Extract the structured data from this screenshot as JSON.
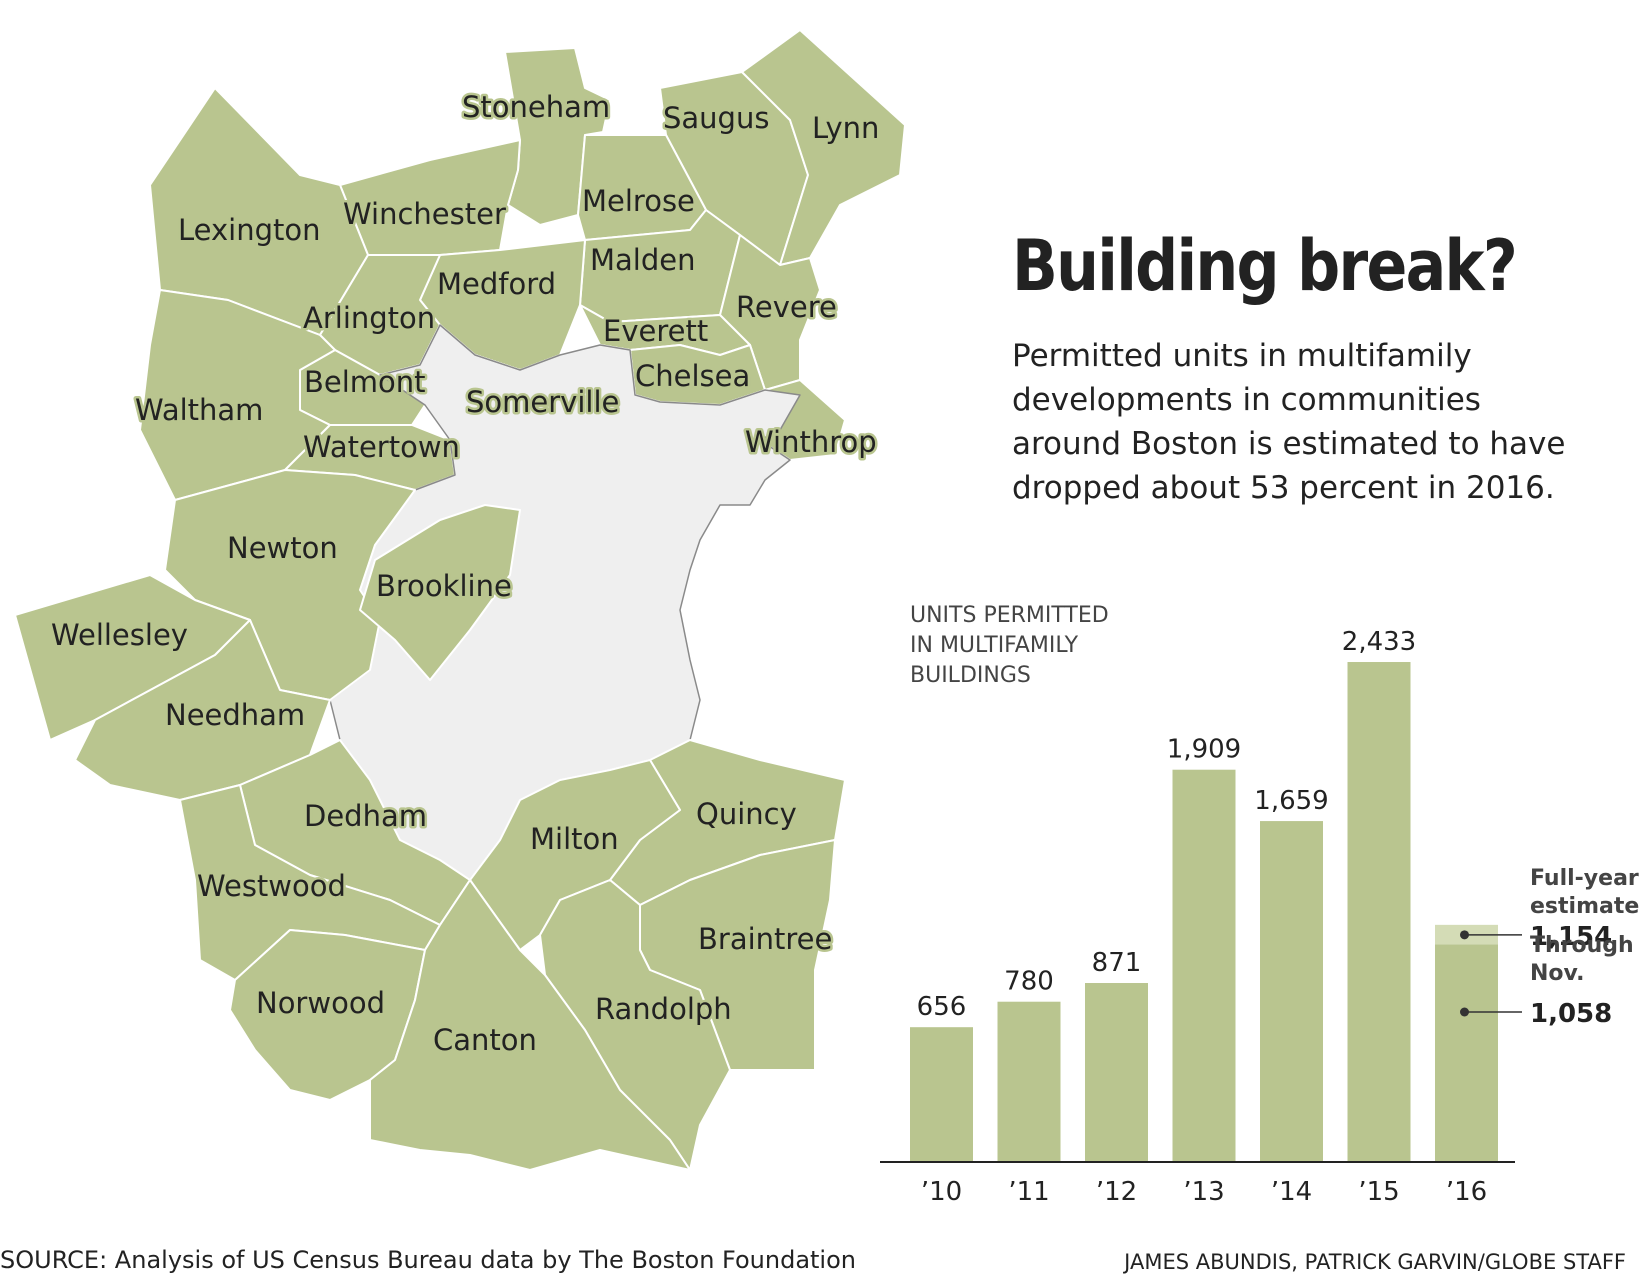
{
  "headline": {
    "title": "Building break?",
    "subtitle": "Permitted units in multifamily developments in communities around Boston is estimated to have dropped about 53 percent in 2016."
  },
  "map": {
    "fill_color": "#b9c58f",
    "boston_fill_color": "#efefef",
    "towns": [
      "Stoneham",
      "Saugus",
      "Lynn",
      "Winchester",
      "Melrose",
      "Lexington",
      "Malden",
      "Medford",
      "Revere",
      "Arlington",
      "Everett",
      "Chelsea",
      "Belmont",
      "Somerville",
      "Waltham",
      "Winthrop",
      "Watertown",
      "Newton",
      "Brookline",
      "Wellesley",
      "Needham",
      "Dedham",
      "Quincy",
      "Milton",
      "Westwood",
      "Braintree",
      "Randolph",
      "Norwood",
      "Canton"
    ]
  },
  "chart_data": {
    "type": "bar",
    "title": "UNITS PERMITTED IN MULTIFAMILY BUILDINGS",
    "title_lines": [
      "UNITS PERMITTED",
      "IN MULTIFAMILY",
      "BUILDINGS"
    ],
    "categories": [
      "'10",
      "'11",
      "'12",
      "'13",
      "'14",
      "'15",
      "'16"
    ],
    "category_labels": [
      "’10",
      "’11",
      "’12",
      "’13",
      "’14",
      "’15",
      "’16"
    ],
    "values": [
      656,
      780,
      871,
      1909,
      1659,
      2433,
      1058
    ],
    "value_labels": [
      "656",
      "780",
      "871",
      "1,909",
      "1,659",
      "2,433",
      null
    ],
    "estimate": {
      "category": "'16",
      "full_year_value": 1154,
      "full_year_label_lines": [
        "Full-year",
        "estimate"
      ],
      "full_year_value_label": "1,154",
      "through_value": 1058,
      "through_label_lines": [
        "Through",
        "Nov."
      ],
      "through_value_label": "1,058"
    },
    "ylim": [
      0,
      2600
    ],
    "grid": false,
    "bar_color": "#b9c58f",
    "estimate_color": "#d4dcb6"
  },
  "footer": {
    "source": "SOURCE: Analysis of US Census Bureau data by The Boston Foundation",
    "credit": "JAMES ABUNDIS, PATRICK GARVIN/GLOBE STAFF"
  }
}
